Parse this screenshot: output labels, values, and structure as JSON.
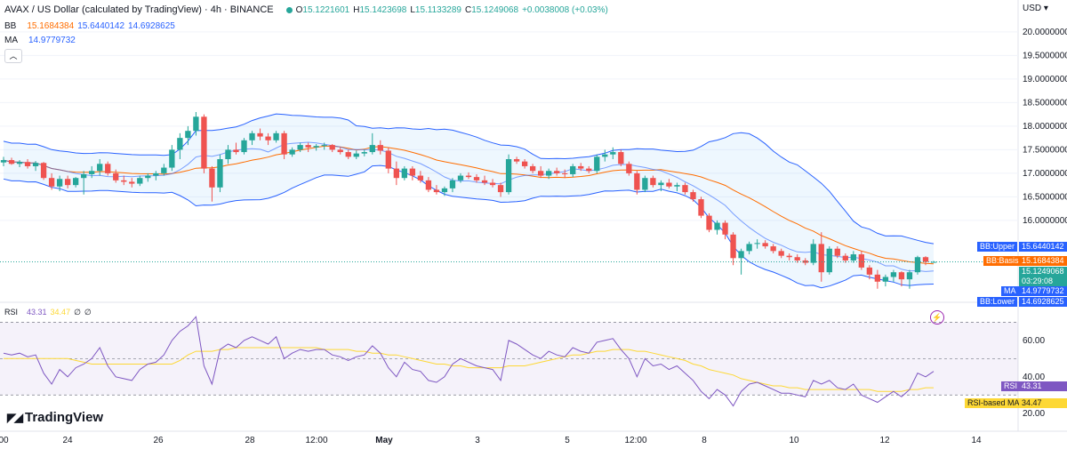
{
  "header": {
    "title": "AVAX / US Dollar (calculated by TradingView) · 4h · BINANCE",
    "ohlc": {
      "open_label": "O",
      "open": "15.1221601",
      "high_label": "H",
      "high": "15.1423698",
      "low_label": "L",
      "low": "15.1133289",
      "close_label": "C",
      "close": "15.1249068",
      "change": "+0.0038008 (+0.03%)"
    },
    "bb_label": "BB",
    "bb_basis": "15.1684384",
    "bb_upper": "15.6440142",
    "bb_lower": "14.6928625",
    "ma_label": "MA",
    "ma_value": "14.9779732",
    "collapse_icon": "chevron-up-icon"
  },
  "price_axis": {
    "currency": "USD",
    "ticks": [
      "20.0000000",
      "19.5000000",
      "19.0000000",
      "18.5000000",
      "18.0000000",
      "17.5000000",
      "17.0000000",
      "16.5000000",
      "16.0000000"
    ]
  },
  "labels": {
    "bb_upper": {
      "name": "BB:Upper",
      "value": "15.6440142"
    },
    "bb_basis": {
      "name": "BB:Basis",
      "value": "15.1684384"
    },
    "price": {
      "value": "15.1249068",
      "countdown": "03:29:08"
    },
    "ma": {
      "name": "MA",
      "value": "14.9779732"
    },
    "bb_lower": {
      "name": "BB:Lower",
      "value": "14.6928625"
    }
  },
  "rsi": {
    "label": "RSI",
    "value": "43.31",
    "ma_value": "34.47",
    "extra1": "∅",
    "extra2": "∅",
    "ticks": [
      "60.00",
      "40.00",
      "20.00"
    ],
    "tag_rsi": "RSI",
    "tag_ma": "RSI-based MA"
  },
  "time_axis": [
    "00",
    "24",
    "26",
    "28",
    "12:00",
    "May",
    "3",
    "5",
    "12:00",
    "8",
    "10",
    "12",
    "14"
  ],
  "logo": "TradingView",
  "colors": {
    "up": "#26a69a",
    "down": "#ef5350",
    "bb": "#2962ff",
    "basis": "#ff6d00",
    "rsi": "#7e57c2",
    "rsi_ma": "#fdd835"
  },
  "chart_data": {
    "type": "candlestick",
    "title": "AVAX / US Dollar (calculated by TradingView) · 4h · BINANCE",
    "ylim": [
      14.3,
      20.3
    ],
    "candles": [
      [
        17.23,
        17.35,
        17.15,
        17.28
      ],
      [
        17.28,
        17.33,
        17.18,
        17.2
      ],
      [
        17.2,
        17.28,
        17.13,
        17.24
      ],
      [
        17.24,
        17.3,
        17.1,
        17.15
      ],
      [
        17.15,
        17.26,
        17.05,
        17.22
      ],
      [
        17.22,
        17.24,
        16.86,
        16.9
      ],
      [
        16.9,
        17.0,
        16.65,
        16.72
      ],
      [
        16.72,
        16.95,
        16.62,
        16.88
      ],
      [
        16.88,
        16.95,
        16.68,
        16.75
      ],
      [
        16.75,
        16.92,
        16.7,
        16.9
      ],
      [
        16.9,
        17.05,
        16.55,
        16.98
      ],
      [
        16.98,
        17.15,
        16.9,
        17.05
      ],
      [
        17.05,
        17.3,
        16.95,
        17.2
      ],
      [
        17.2,
        17.25,
        16.95,
        17.0
      ],
      [
        17.0,
        17.08,
        16.8,
        16.85
      ],
      [
        16.85,
        16.95,
        16.75,
        16.82
      ],
      [
        16.82,
        16.9,
        16.7,
        16.78
      ],
      [
        16.78,
        16.95,
        16.73,
        16.9
      ],
      [
        16.9,
        17.0,
        16.82,
        16.95
      ],
      [
        16.95,
        17.05,
        16.85,
        17.0
      ],
      [
        17.0,
        17.2,
        16.95,
        17.12
      ],
      [
        17.12,
        17.6,
        17.05,
        17.5
      ],
      [
        17.5,
        17.85,
        17.3,
        17.75
      ],
      [
        17.75,
        18.0,
        17.6,
        17.9
      ],
      [
        17.9,
        18.3,
        17.8,
        18.2
      ],
      [
        18.2,
        18.25,
        17.0,
        17.1
      ],
      [
        17.1,
        17.15,
        16.4,
        16.7
      ],
      [
        16.7,
        17.4,
        16.6,
        17.3
      ],
      [
        17.3,
        17.6,
        17.2,
        17.5
      ],
      [
        17.5,
        17.65,
        17.4,
        17.45
      ],
      [
        17.45,
        17.75,
        17.4,
        17.7
      ],
      [
        17.7,
        17.9,
        17.6,
        17.85
      ],
      [
        17.85,
        17.95,
        17.7,
        17.78
      ],
      [
        17.78,
        17.85,
        17.6,
        17.7
      ],
      [
        17.7,
        17.9,
        17.65,
        17.85
      ],
      [
        17.85,
        17.9,
        17.3,
        17.4
      ],
      [
        17.4,
        17.55,
        17.35,
        17.5
      ],
      [
        17.5,
        17.65,
        17.45,
        17.6
      ],
      [
        17.6,
        17.65,
        17.45,
        17.55
      ],
      [
        17.55,
        17.62,
        17.48,
        17.58
      ],
      [
        17.58,
        17.65,
        17.5,
        17.6
      ],
      [
        17.6,
        17.62,
        17.45,
        17.5
      ],
      [
        17.5,
        17.55,
        17.4,
        17.45
      ],
      [
        17.45,
        17.5,
        17.3,
        17.35
      ],
      [
        17.35,
        17.48,
        17.3,
        17.42
      ],
      [
        17.42,
        17.5,
        17.36,
        17.45
      ],
      [
        17.45,
        17.85,
        17.4,
        17.6
      ],
      [
        17.6,
        17.7,
        17.4,
        17.48
      ],
      [
        17.48,
        17.55,
        17.0,
        17.1
      ],
      [
        17.1,
        17.25,
        16.75,
        16.9
      ],
      [
        16.9,
        17.15,
        16.85,
        17.1
      ],
      [
        17.1,
        17.15,
        16.85,
        16.95
      ],
      [
        16.95,
        17.05,
        16.8,
        16.85
      ],
      [
        16.85,
        16.92,
        16.6,
        16.65
      ],
      [
        16.65,
        16.75,
        16.55,
        16.6
      ],
      [
        16.6,
        16.72,
        16.52,
        16.68
      ],
      [
        16.68,
        16.9,
        16.6,
        16.85
      ],
      [
        16.85,
        17.0,
        16.8,
        16.95
      ],
      [
        16.95,
        17.02,
        16.88,
        16.92
      ],
      [
        16.92,
        16.98,
        16.8,
        16.85
      ],
      [
        16.85,
        16.95,
        16.75,
        16.8
      ],
      [
        16.8,
        16.88,
        16.7,
        16.75
      ],
      [
        16.75,
        16.8,
        16.5,
        16.6
      ],
      [
        16.6,
        17.4,
        16.55,
        17.3
      ],
      [
        17.3,
        17.35,
        17.2,
        17.25
      ],
      [
        17.25,
        17.3,
        17.1,
        17.15
      ],
      [
        17.15,
        17.2,
        17.0,
        17.05
      ],
      [
        17.05,
        17.15,
        16.9,
        16.95
      ],
      [
        16.95,
        17.1,
        16.88,
        17.05
      ],
      [
        17.05,
        17.12,
        16.95,
        17.0
      ],
      [
        17.0,
        17.08,
        16.9,
        16.98
      ],
      [
        16.98,
        17.2,
        16.92,
        17.15
      ],
      [
        17.15,
        17.22,
        17.05,
        17.1
      ],
      [
        17.1,
        17.15,
        17.0,
        17.05
      ],
      [
        17.05,
        17.4,
        17.0,
        17.35
      ],
      [
        17.35,
        17.5,
        17.25,
        17.4
      ],
      [
        17.4,
        17.55,
        17.3,
        17.45
      ],
      [
        17.45,
        17.5,
        17.15,
        17.2
      ],
      [
        17.2,
        17.25,
        16.95,
        17.0
      ],
      [
        17.0,
        17.05,
        16.55,
        16.65
      ],
      [
        16.65,
        16.95,
        16.6,
        16.9
      ],
      [
        16.9,
        16.95,
        16.7,
        16.75
      ],
      [
        16.75,
        16.85,
        16.62,
        16.8
      ],
      [
        16.8,
        16.88,
        16.68,
        16.72
      ],
      [
        16.72,
        16.8,
        16.62,
        16.75
      ],
      [
        16.75,
        16.8,
        16.55,
        16.6
      ],
      [
        16.6,
        16.65,
        16.4,
        16.45
      ],
      [
        16.45,
        16.5,
        16.05,
        16.1
      ],
      [
        16.1,
        16.15,
        15.75,
        15.8
      ],
      [
        15.8,
        16.0,
        15.7,
        15.95
      ],
      [
        15.95,
        16.0,
        15.6,
        15.7
      ],
      [
        15.7,
        15.75,
        15.05,
        15.2
      ],
      [
        15.2,
        15.4,
        14.85,
        15.35
      ],
      [
        15.35,
        15.55,
        15.28,
        15.5
      ],
      [
        15.5,
        15.6,
        15.4,
        15.52
      ],
      [
        15.52,
        15.58,
        15.4,
        15.45
      ],
      [
        15.45,
        15.5,
        15.3,
        15.35
      ],
      [
        15.35,
        15.4,
        15.2,
        15.25
      ],
      [
        15.25,
        15.3,
        15.15,
        15.22
      ],
      [
        15.22,
        15.28,
        15.1,
        15.15
      ],
      [
        15.15,
        15.2,
        15.05,
        15.1
      ],
      [
        15.1,
        15.6,
        15.05,
        15.5
      ],
      [
        15.5,
        15.75,
        14.7,
        14.9
      ],
      [
        14.9,
        15.45,
        14.85,
        15.4
      ],
      [
        15.4,
        15.45,
        15.2,
        15.25
      ],
      [
        15.25,
        15.3,
        15.1,
        15.15
      ],
      [
        15.15,
        15.35,
        15.1,
        15.28
      ],
      [
        15.28,
        15.35,
        14.95,
        15.0
      ],
      [
        15.0,
        15.05,
        14.75,
        14.85
      ],
      [
        14.85,
        14.95,
        14.55,
        14.7
      ],
      [
        14.7,
        14.85,
        14.6,
        14.8
      ],
      [
        14.8,
        14.95,
        14.7,
        14.9
      ],
      [
        14.9,
        14.92,
        14.6,
        14.75
      ],
      [
        14.75,
        14.95,
        14.55,
        14.9
      ],
      [
        14.9,
        15.25,
        14.85,
        15.22
      ],
      [
        15.22,
        15.24,
        15.05,
        15.12
      ],
      [
        15.12,
        15.14,
        15.11,
        15.12
      ]
    ],
    "rsi": [
      53,
      52,
      53,
      51,
      52,
      42,
      36,
      44,
      40,
      45,
      47,
      50,
      56,
      46,
      40,
      39,
      38,
      44,
      47,
      48,
      52,
      60,
      65,
      68,
      73,
      46,
      36,
      55,
      58,
      56,
      60,
      62,
      60,
      58,
      62,
      50,
      53,
      55,
      54,
      55,
      55,
      52,
      51,
      49,
      51,
      52,
      57,
      53,
      45,
      40,
      48,
      44,
      43,
      38,
      37,
      40,
      47,
      50,
      48,
      46,
      45,
      44,
      38,
      60,
      58,
      55,
      52,
      50,
      54,
      52,
      51,
      56,
      54,
      53,
      59,
      60,
      61,
      55,
      50,
      40,
      50,
      46,
      47,
      44,
      46,
      42,
      38,
      32,
      28,
      33,
      30,
      24,
      32,
      36,
      37,
      35,
      33,
      31,
      31,
      30,
      29,
      38,
      36,
      38,
      34,
      33,
      36,
      30,
      28,
      26,
      29,
      32,
      29,
      33,
      42,
      40,
      43
    ],
    "rsi_ma": [
      50,
      50,
      50,
      50,
      50,
      50,
      50,
      50,
      50,
      49,
      48,
      47,
      47,
      47,
      47,
      47,
      47,
      47,
      47,
      47,
      47,
      47,
      49,
      52,
      54,
      54,
      54,
      55,
      55,
      56,
      56,
      56,
      56,
      56,
      56,
      56,
      56,
      56,
      56,
      56,
      55,
      55,
      55,
      55,
      54,
      54,
      53,
      53,
      52,
      52,
      51,
      50,
      49,
      48,
      47,
      47,
      46,
      46,
      45,
      45,
      45,
      45,
      45,
      46,
      46,
      46,
      47,
      48,
      49,
      50,
      51,
      52,
      52,
      53,
      54,
      54,
      55,
      55,
      55,
      54,
      54,
      53,
      52,
      51,
      50,
      49,
      47,
      46,
      44,
      43,
      42,
      41,
      39,
      38,
      37,
      36,
      35,
      35,
      34,
      34,
      33,
      33,
      33,
      33,
      33,
      33,
      33,
      33,
      33,
      32,
      32,
      32,
      32,
      33,
      33,
      34,
      34
    ],
    "rsi_ylim": [
      15,
      78
    ],
    "rsi_bands": [
      70,
      50,
      30
    ]
  }
}
